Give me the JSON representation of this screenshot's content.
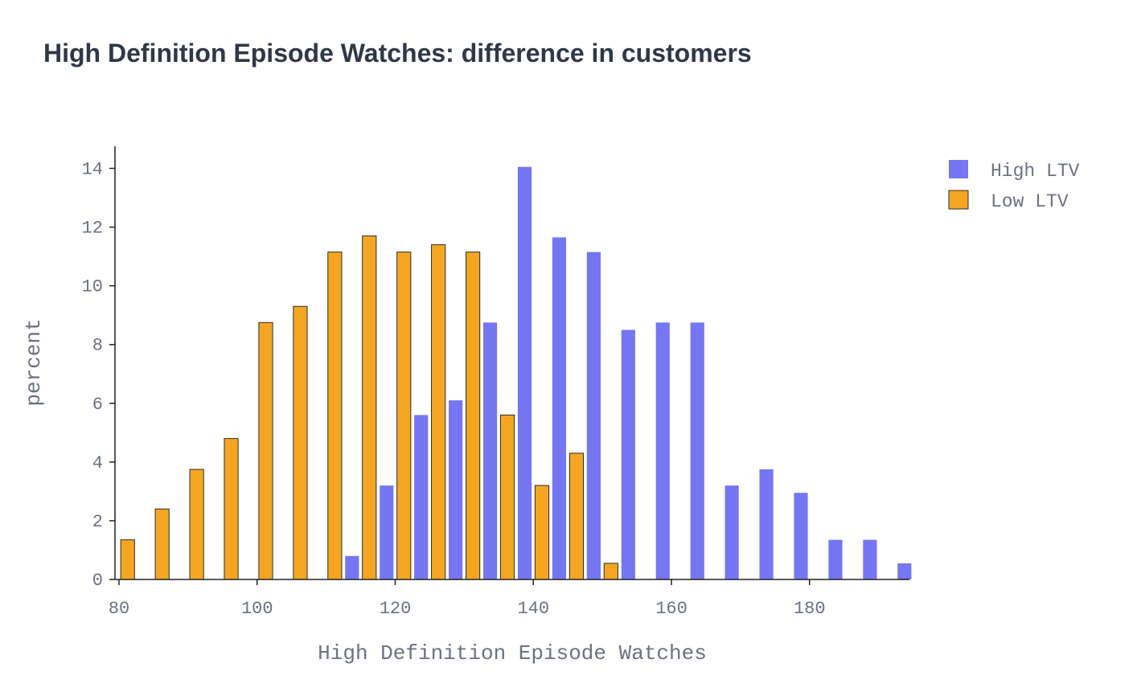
{
  "chart_data": {
    "type": "bar",
    "title": "High Definition Episode Watches: difference in customers",
    "xlabel": "High Definition Episode Watches",
    "ylabel": "percent",
    "xlim": [
      80,
      195
    ],
    "ylim": [
      0,
      14.7
    ],
    "x_ticks": [
      80,
      100,
      120,
      140,
      160,
      180
    ],
    "y_ticks": [
      0,
      2,
      4,
      6,
      8,
      10,
      12,
      14
    ],
    "legend_position": "top-right",
    "grid": false,
    "series": [
      {
        "name": "High LTV",
        "color": "#7476f2",
        "x": [
          112.5,
          117.5,
          122.5,
          127.5,
          132.5,
          137.5,
          142.5,
          147.5,
          152.5,
          157.5,
          162.5,
          167.5,
          172.5,
          177.5,
          182.5,
          187.5,
          192.5
        ],
        "values": [
          0.8,
          3.2,
          5.6,
          6.1,
          8.75,
          14.05,
          11.65,
          11.15,
          8.5,
          8.75,
          8.75,
          3.2,
          3.75,
          2.95,
          1.35,
          1.35,
          0.55
        ]
      },
      {
        "name": "Low LTV",
        "color": "#f4a623",
        "x": [
          82.5,
          87.5,
          92.5,
          97.5,
          102.5,
          107.5,
          112.5,
          117.5,
          122.5,
          127.5,
          132.5,
          137.5,
          142.5,
          147.5,
          152.5
        ],
        "values": [
          1.35,
          2.4,
          3.75,
          4.8,
          8.75,
          9.3,
          11.15,
          11.7,
          11.15,
          11.4,
          11.15,
          5.6,
          3.2,
          4.3,
          0.55
        ]
      }
    ]
  }
}
